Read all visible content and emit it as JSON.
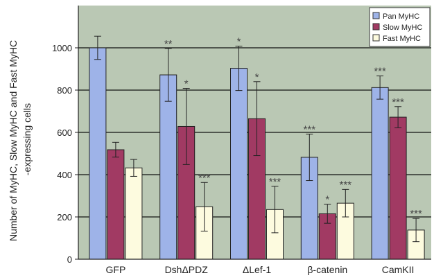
{
  "chart_data": {
    "type": "bar",
    "ylabel_lines": [
      "Number of MyHC, Slow MyHC and Fast MyHC",
      "-expressing cells"
    ],
    "categories": [
      "GFP",
      "DshΔPDZ",
      "ΔLef-1",
      "β-catenin",
      "CamKII"
    ],
    "ylim": [
      0,
      1200
    ],
    "yticks": [
      0,
      200,
      400,
      600,
      800,
      1000
    ],
    "grid": true,
    "legend_position": "top-right",
    "series": [
      {
        "name": "Pan MyHC",
        "color": "#9eb3e8",
        "values": [
          1000,
          872,
          903,
          482,
          812
        ],
        "errors": [
          55,
          125,
          105,
          110,
          55
        ],
        "significance": [
          "",
          "**",
          "*",
          "***",
          "***"
        ]
      },
      {
        "name": "Slow MyHC",
        "color": "#a13a63",
        "values": [
          518,
          628,
          665,
          215,
          672
        ],
        "errors": [
          35,
          180,
          175,
          45,
          50
        ],
        "significance": [
          "",
          "*",
          "*",
          "*",
          "***"
        ]
      },
      {
        "name": "Fast MyHC",
        "color": "#fdfbdf",
        "values": [
          432,
          248,
          235,
          265,
          138
        ],
        "errors": [
          40,
          115,
          110,
          65,
          55
        ],
        "significance": [
          "",
          "***",
          "***",
          "***",
          "***"
        ]
      }
    ]
  },
  "colors": {
    "plot_background": "#bac8b4",
    "bar_outline": "#222222",
    "gridline": "#111111"
  }
}
